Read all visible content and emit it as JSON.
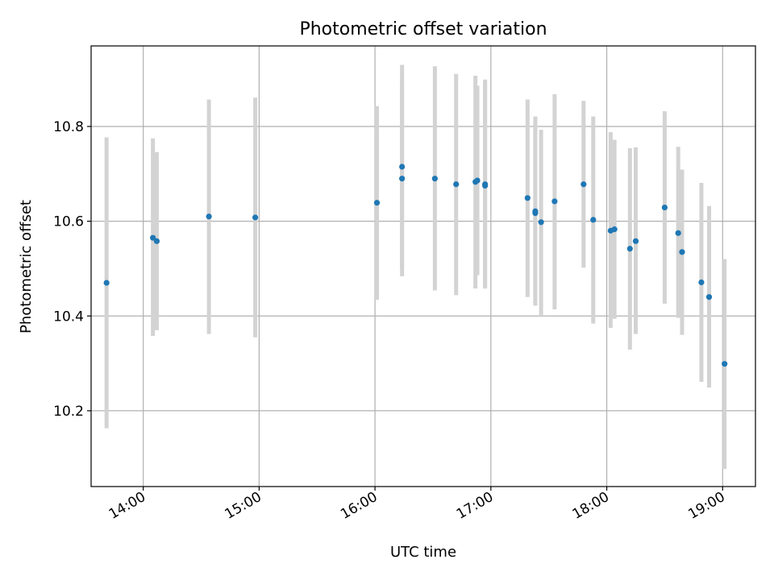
{
  "chart_data": {
    "type": "scatter",
    "title": "Photometric offset variation",
    "xlabel": "UTC time",
    "ylabel": "Photometric offset",
    "xlim": [
      "13:33",
      "19:17"
    ],
    "ylim": [
      10.04,
      10.97
    ],
    "x_ticks": [
      "14:00",
      "15:00",
      "16:00",
      "17:00",
      "18:00",
      "19:00"
    ],
    "y_ticks": [
      "10.2",
      "10.4",
      "10.6",
      "10.8"
    ],
    "grid": true,
    "colors": {
      "point": "#1f77b4",
      "errorbar": "#d3d3d3"
    },
    "series": [
      {
        "marker": "point-with-errorbar",
        "points": [
          {
            "x": "13:41",
            "y": 10.47,
            "ylow": 10.163,
            "yhigh": 10.777
          },
          {
            "x": "14:05",
            "y": 10.565,
            "ylow": 10.358,
            "yhigh": 10.775
          },
          {
            "x": "14:07",
            "y": 10.558,
            "ylow": 10.37,
            "yhigh": 10.746
          },
          {
            "x": "14:34",
            "y": 10.61,
            "ylow": 10.362,
            "yhigh": 10.857
          },
          {
            "x": "14:58",
            "y": 10.608,
            "ylow": 10.355,
            "yhigh": 10.861
          },
          {
            "x": "16:01",
            "y": 10.639,
            "ylow": 10.434,
            "yhigh": 10.843
          },
          {
            "x": "16:14",
            "y": 10.69,
            "ylow": 10.484,
            "yhigh": 10.895
          },
          {
            "x": "16:14",
            "y": 10.715,
            "ylow": 10.502,
            "yhigh": 10.93
          },
          {
            "x": "16:31",
            "y": 10.69,
            "ylow": 10.454,
            "yhigh": 10.927
          },
          {
            "x": "16:42",
            "y": 10.678,
            "ylow": 10.444,
            "yhigh": 10.911
          },
          {
            "x": "16:52",
            "y": 10.683,
            "ylow": 10.458,
            "yhigh": 10.907
          },
          {
            "x": "16:53",
            "y": 10.686,
            "ylow": 10.486,
            "yhigh": 10.886
          },
          {
            "x": "16:57",
            "y": 10.678,
            "ylow": 10.458,
            "yhigh": 10.899
          },
          {
            "x": "16:57",
            "y": 10.675,
            "ylow": 10.458,
            "yhigh": 10.892
          },
          {
            "x": "17:19",
            "y": 10.649,
            "ylow": 10.44,
            "yhigh": 10.857
          },
          {
            "x": "17:23",
            "y": 10.621,
            "ylow": 10.422,
            "yhigh": 10.821
          },
          {
            "x": "17:23",
            "y": 10.617,
            "ylow": 10.422,
            "yhigh": 10.812
          },
          {
            "x": "17:26",
            "y": 10.598,
            "ylow": 10.402,
            "yhigh": 10.793
          },
          {
            "x": "17:33",
            "y": 10.642,
            "ylow": 10.414,
            "yhigh": 10.868
          },
          {
            "x": "17:48",
            "y": 10.678,
            "ylow": 10.502,
            "yhigh": 10.854
          },
          {
            "x": "17:53",
            "y": 10.603,
            "ylow": 10.384,
            "yhigh": 10.821
          },
          {
            "x": "18:02",
            "y": 10.58,
            "ylow": 10.375,
            "yhigh": 10.788
          },
          {
            "x": "18:04",
            "y": 10.583,
            "ylow": 10.394,
            "yhigh": 10.772
          },
          {
            "x": "18:12",
            "y": 10.542,
            "ylow": 10.329,
            "yhigh": 10.754
          },
          {
            "x": "18:15",
            "y": 10.558,
            "ylow": 10.362,
            "yhigh": 10.756
          },
          {
            "x": "18:30",
            "y": 10.629,
            "ylow": 10.426,
            "yhigh": 10.832
          },
          {
            "x": "18:37",
            "y": 10.575,
            "ylow": 10.396,
            "yhigh": 10.757
          },
          {
            "x": "18:39",
            "y": 10.535,
            "ylow": 10.36,
            "yhigh": 10.709
          },
          {
            "x": "18:49",
            "y": 10.471,
            "ylow": 10.261,
            "yhigh": 10.681
          },
          {
            "x": "18:53",
            "y": 10.44,
            "ylow": 10.249,
            "yhigh": 10.632
          },
          {
            "x": "19:01",
            "y": 10.299,
            "ylow": 10.077,
            "yhigh": 10.52
          }
        ]
      }
    ]
  }
}
